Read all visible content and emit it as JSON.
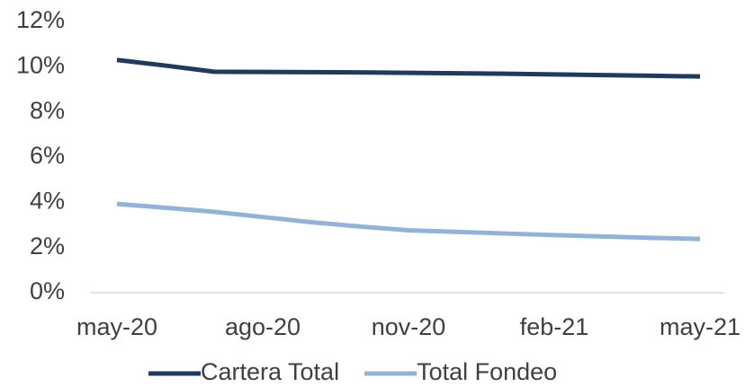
{
  "chart_data": {
    "type": "line",
    "categories": [
      "may-20",
      null,
      null,
      "ago-20",
      null,
      null,
      "nov-20",
      null,
      null,
      "feb-21",
      null,
      null,
      "may-21"
    ],
    "series": [
      {
        "name": "Cartera Total",
        "color": "#203a5c",
        "values": [
          10.3,
          10.05,
          9.78,
          9.77,
          9.76,
          9.75,
          9.73,
          9.71,
          9.69,
          9.66,
          9.63,
          9.6,
          9.57
        ]
      },
      {
        "name": "Total Fondeo",
        "color": "#93b2d8",
        "values": [
          3.93,
          3.76,
          3.58,
          3.35,
          3.12,
          2.93,
          2.76,
          2.69,
          2.62,
          2.55,
          2.49,
          2.43,
          2.38
        ]
      }
    ],
    "ylim": [
      0,
      12
    ],
    "yticks": [
      {
        "value": 0,
        "label": "0%"
      },
      {
        "value": 2,
        "label": "2%"
      },
      {
        "value": 4,
        "label": "4%"
      },
      {
        "value": 6,
        "label": "6%"
      },
      {
        "value": 8,
        "label": "8%"
      },
      {
        "value": 10,
        "label": "10%"
      },
      {
        "value": 12,
        "label": "12%"
      }
    ],
    "grid": false,
    "legend": "bottom"
  }
}
